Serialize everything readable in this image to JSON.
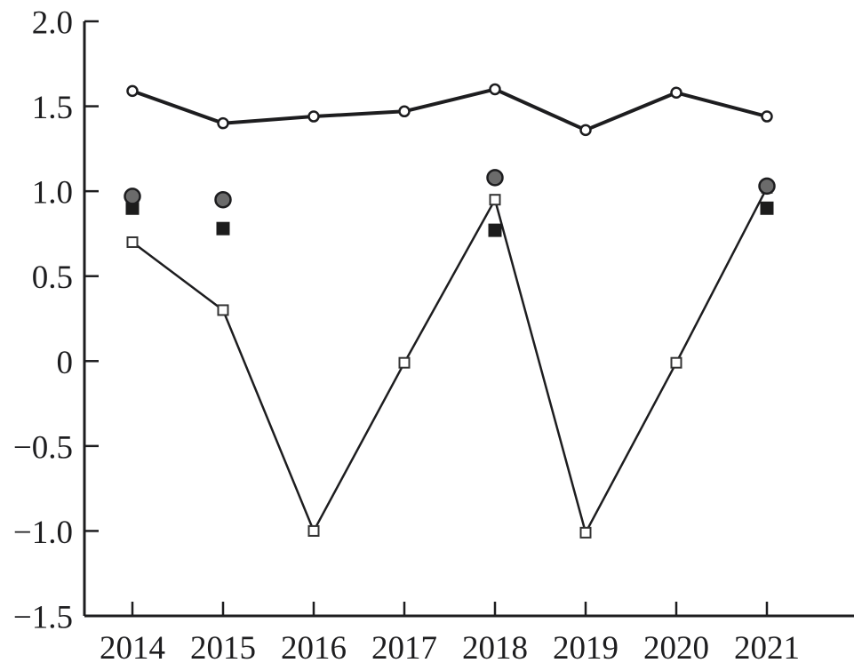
{
  "chart_data": {
    "type": "line",
    "title": "",
    "xlabel": "",
    "ylabel": "",
    "x": [
      2014,
      2015,
      2016,
      2017,
      2018,
      2019,
      2020,
      2021
    ],
    "xtick_labels": [
      "2014",
      "2015",
      "2016",
      "2017",
      "2018",
      "2019",
      "2020",
      "2021"
    ],
    "yticks": [
      2.0,
      1.5,
      1.0,
      0.5,
      0,
      -0.5,
      -1.0,
      -1.5
    ],
    "ytick_labels": [
      "2.0",
      "1.5",
      "1.0",
      "0.5",
      "0",
      "−0.5",
      "−1.0",
      "−1.5"
    ],
    "ylim": [
      -1.5,
      2.0
    ],
    "grid": false,
    "legend": "none",
    "series": [
      {
        "name": "open-square-line",
        "marker": "open-square",
        "line": true,
        "values": [
          0.7,
          0.3,
          -1.0,
          -0.01,
          0.95,
          -1.01,
          -0.01,
          1.02
        ]
      },
      {
        "name": "open-circle-line",
        "marker": "open-circle",
        "line": true,
        "values": [
          1.59,
          1.4,
          1.44,
          1.47,
          1.6,
          1.36,
          1.58,
          1.44
        ]
      },
      {
        "name": "black-square-points",
        "marker": "filled-square",
        "line": false,
        "values": [
          0.9,
          0.78,
          null,
          null,
          0.77,
          null,
          null,
          0.9
        ]
      },
      {
        "name": "gray-circle-points",
        "marker": "filled-circle",
        "line": false,
        "values": [
          0.97,
          0.95,
          null,
          null,
          1.08,
          null,
          null,
          1.03
        ]
      }
    ],
    "colors": {
      "axis": "#1d1d1f",
      "line": "#1d1d1f",
      "open_marker_fill": "#ffffff",
      "gray_circle_fill": "#6b6b6b",
      "black_square_fill": "#1c1c1c"
    }
  }
}
